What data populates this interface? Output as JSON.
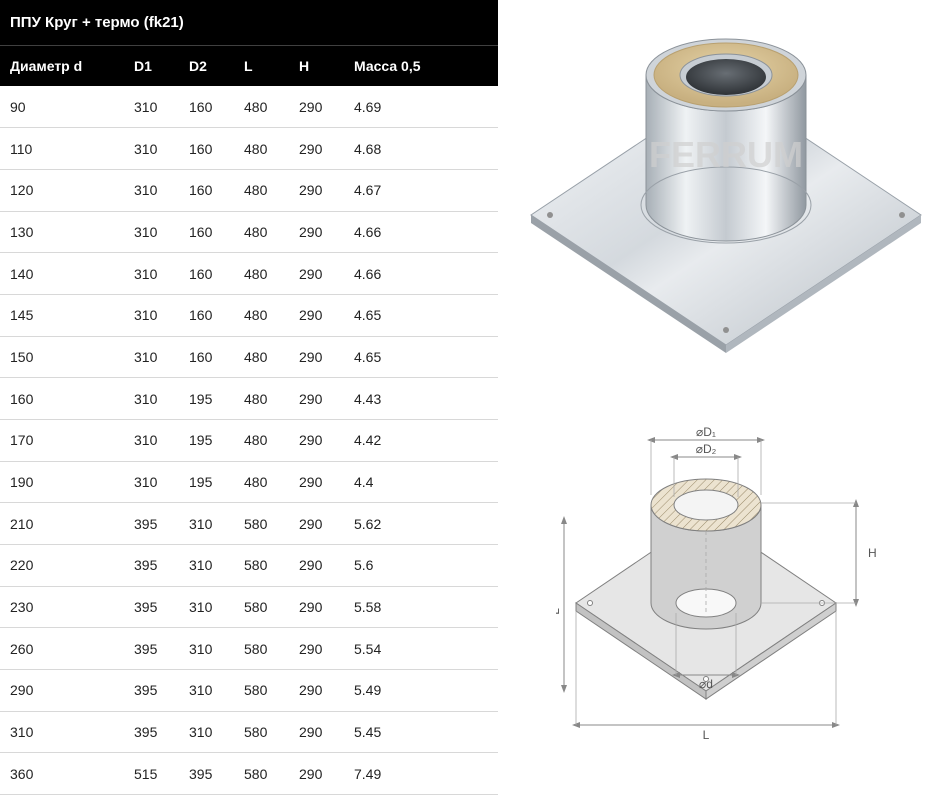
{
  "table": {
    "title": "ППУ Круг + термо (fk21)",
    "headers": [
      "Диаметр d",
      "D1",
      "D2",
      "L",
      "H",
      "Масса 0,5"
    ],
    "rows": [
      [
        "90",
        "310",
        "160",
        "480",
        "290",
        "4.69"
      ],
      [
        "110",
        "310",
        "160",
        "480",
        "290",
        "4.68"
      ],
      [
        "120",
        "310",
        "160",
        "480",
        "290",
        "4.67"
      ],
      [
        "130",
        "310",
        "160",
        "480",
        "290",
        "4.66"
      ],
      [
        "140",
        "310",
        "160",
        "480",
        "290",
        "4.66"
      ],
      [
        "145",
        "310",
        "160",
        "480",
        "290",
        "4.65"
      ],
      [
        "150",
        "310",
        "160",
        "480",
        "290",
        "4.65"
      ],
      [
        "160",
        "310",
        "195",
        "480",
        "290",
        "4.43"
      ],
      [
        "170",
        "310",
        "195",
        "480",
        "290",
        "4.42"
      ],
      [
        "190",
        "310",
        "195",
        "480",
        "290",
        "4.4"
      ],
      [
        "210",
        "395",
        "310",
        "580",
        "290",
        "5.62"
      ],
      [
        "220",
        "395",
        "310",
        "580",
        "290",
        "5.6"
      ],
      [
        "230",
        "395",
        "310",
        "580",
        "290",
        "5.58"
      ],
      [
        "260",
        "395",
        "310",
        "580",
        "290",
        "5.54"
      ],
      [
        "290",
        "395",
        "310",
        "580",
        "290",
        "5.49"
      ],
      [
        "310",
        "395",
        "310",
        "580",
        "290",
        "5.45"
      ],
      [
        "360",
        "515",
        "395",
        "580",
        "290",
        "7.49"
      ]
    ],
    "header_bg": "#000000",
    "header_fg": "#ffffff",
    "row_border": "#d8d8d8",
    "cell_fg": "#222222"
  },
  "product": {
    "watermark": "FERRUM",
    "plate_color": "#d8dce0",
    "metal_light": "#f2f4f6",
    "metal_dark": "#9aa2aa",
    "insulation": "#d8c49a"
  },
  "drawing": {
    "labels": {
      "D1": "⌀D₁",
      "D2": "⌀D₂",
      "d": "⌀d",
      "L": "L",
      "H": "H"
    },
    "line_color": "#888888",
    "hatch_color": "#9a8a6a"
  }
}
